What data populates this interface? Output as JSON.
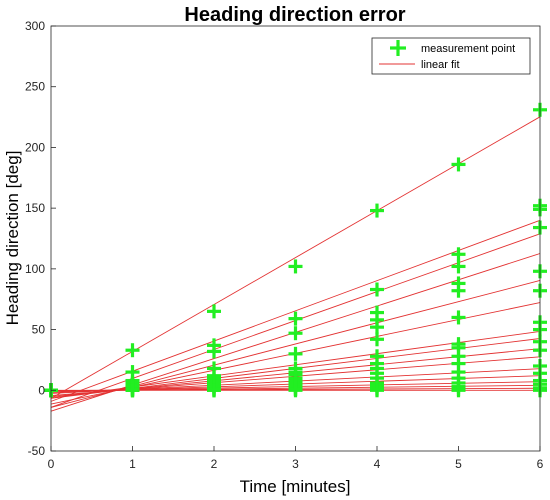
{
  "chart_data": {
    "type": "scatter",
    "title": "Heading direction error",
    "xlabel": "Time [minutes]",
    "ylabel": "Heading direction [deg]",
    "xlim": [
      0,
      6
    ],
    "ylim": [
      -50,
      300
    ],
    "xticks": [
      "0",
      "1",
      "2",
      "3",
      "4",
      "5",
      "6"
    ],
    "yticks": [
      "-50",
      "0",
      "50",
      "100",
      "150",
      "200",
      "250",
      "300"
    ],
    "grid": false,
    "legend": {
      "position": "top-right",
      "entries": [
        "measurement point",
        "linear fit"
      ]
    },
    "colors": {
      "points": "#22ee22",
      "fit": "#e33333"
    },
    "x": [
      0,
      1,
      2,
      3,
      4,
      5,
      6
    ],
    "series": [
      {
        "values": [
          0,
          33,
          65,
          102,
          148,
          186,
          231
        ]
      },
      {
        "values": [
          0,
          15,
          37,
          59,
          83,
          112,
          152
        ]
      },
      {
        "values": [
          0,
          8,
          32,
          47,
          64,
          102,
          149
        ]
      },
      {
        "values": [
          0,
          6,
          18,
          30,
          58,
          88,
          134
        ]
      },
      {
        "values": [
          0,
          5,
          12,
          18,
          52,
          82,
          98
        ]
      },
      {
        "values": [
          0,
          4,
          10,
          15,
          42,
          60,
          82
        ]
      },
      {
        "values": [
          0,
          4,
          8,
          13,
          28,
          38,
          56
        ]
      },
      {
        "values": [
          0,
          3,
          6,
          10,
          22,
          35,
          50
        ]
      },
      {
        "values": [
          0,
          2,
          5,
          8,
          18,
          28,
          40
        ]
      },
      {
        "values": [
          0,
          2,
          4,
          6,
          14,
          22,
          33
        ]
      },
      {
        "values": [
          0,
          1,
          3,
          4,
          10,
          15,
          20
        ]
      },
      {
        "values": [
          0,
          1,
          2,
          3,
          6,
          10,
          14
        ]
      },
      {
        "values": [
          0,
          1,
          1,
          2,
          4,
          6,
          8
        ]
      },
      {
        "values": [
          0,
          0,
          1,
          1,
          2,
          3,
          5
        ]
      },
      {
        "values": [
          0,
          0,
          0,
          1,
          1,
          1,
          2
        ]
      },
      {
        "values": [
          0,
          0,
          0,
          0,
          0,
          0,
          0
        ]
      }
    ]
  }
}
